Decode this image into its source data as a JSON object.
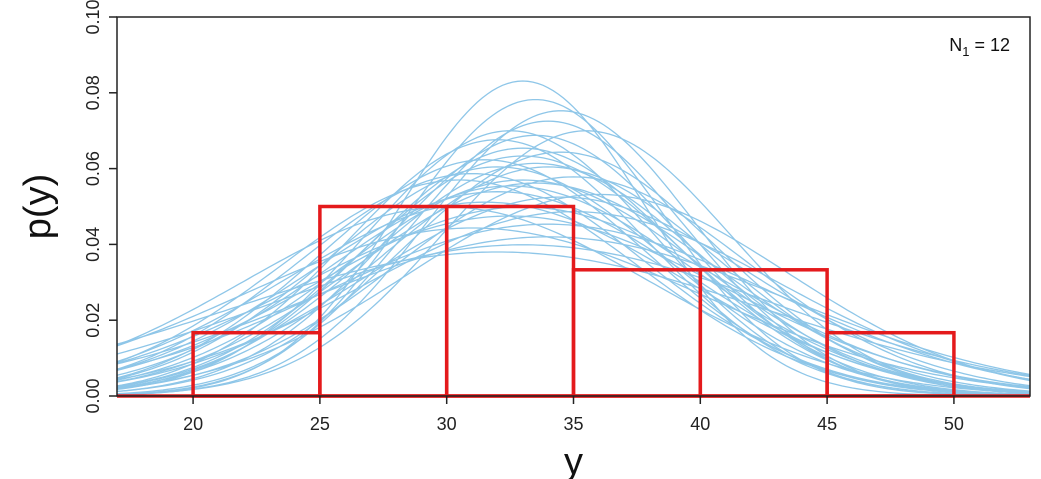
{
  "chart_data": {
    "type": "bar",
    "title": "",
    "xlabel": "y",
    "ylabel": "p(y)",
    "annotation": {
      "prefix": "N",
      "subscript": "1",
      "suffix": " = 12"
    },
    "xlim": [
      17,
      53
    ],
    "ylim": [
      0,
      0.1
    ],
    "x_ticks": [
      20,
      25,
      30,
      35,
      40,
      45,
      50
    ],
    "y_ticks": [
      0.0,
      0.02,
      0.04,
      0.06,
      0.08,
      0.1
    ],
    "y_tick_labels": [
      "0.00",
      "0.02",
      "0.04",
      "0.06",
      "0.08",
      "0.10"
    ],
    "grid": false,
    "histogram": {
      "color": "#e41a1c",
      "baseline": [
        17,
        53
      ],
      "bins": [
        {
          "x0": 20,
          "x1": 25,
          "density": 0.0167
        },
        {
          "x0": 25,
          "x1": 30,
          "density": 0.05
        },
        {
          "x0": 30,
          "x1": 35,
          "density": 0.05
        },
        {
          "x0": 35,
          "x1": 40,
          "density": 0.0333
        },
        {
          "x0": 40,
          "x1": 45,
          "density": 0.0333
        },
        {
          "x0": 45,
          "x1": 50,
          "density": 0.0167
        }
      ]
    },
    "curves": {
      "type": "line",
      "color": "#8ec6e8",
      "kind": "normal-density",
      "series": [
        {
          "mu": 33.0,
          "sigma": 4.8
        },
        {
          "mu": 33.5,
          "sigma": 5.1
        },
        {
          "mu": 34.0,
          "sigma": 5.5
        },
        {
          "mu": 32.5,
          "sigma": 5.7
        },
        {
          "mu": 33.0,
          "sigma": 6.1
        },
        {
          "mu": 35.5,
          "sigma": 5.7
        },
        {
          "mu": 31.5,
          "sigma": 6.4
        },
        {
          "mu": 34.0,
          "sigma": 6.6
        },
        {
          "mu": 32.0,
          "sigma": 7.4
        },
        {
          "mu": 33.5,
          "sigma": 7.1
        },
        {
          "mu": 30.5,
          "sigma": 7.0
        },
        {
          "mu": 35.0,
          "sigma": 6.9
        },
        {
          "mu": 32.0,
          "sigma": 6.6
        },
        {
          "mu": 33.0,
          "sigma": 8.0
        },
        {
          "mu": 31.0,
          "sigma": 9.0
        },
        {
          "mu": 34.5,
          "sigma": 7.6
        },
        {
          "mu": 32.5,
          "sigma": 8.4
        },
        {
          "mu": 33.0,
          "sigma": 10.0
        },
        {
          "mu": 34.0,
          "sigma": 8.8
        },
        {
          "mu": 31.5,
          "sigma": 7.8
        },
        {
          "mu": 33.0,
          "sigma": 6.3
        },
        {
          "mu": 32.0,
          "sigma": 5.9
        },
        {
          "mu": 34.5,
          "sigma": 6.2
        },
        {
          "mu": 36.0,
          "sigma": 7.5
        },
        {
          "mu": 30.0,
          "sigma": 8.0
        },
        {
          "mu": 33.5,
          "sigma": 5.8
        },
        {
          "mu": 32.5,
          "sigma": 7.2
        },
        {
          "mu": 34.0,
          "sigma": 9.5
        },
        {
          "mu": 33.0,
          "sigma": 7.0
        },
        {
          "mu": 31.0,
          "sigma": 6.8
        },
        {
          "mu": 35.0,
          "sigma": 8.2
        },
        {
          "mu": 32.0,
          "sigma": 10.5
        },
        {
          "mu": 33.5,
          "sigma": 6.5
        },
        {
          "mu": 34.5,
          "sigma": 5.3
        }
      ]
    }
  }
}
